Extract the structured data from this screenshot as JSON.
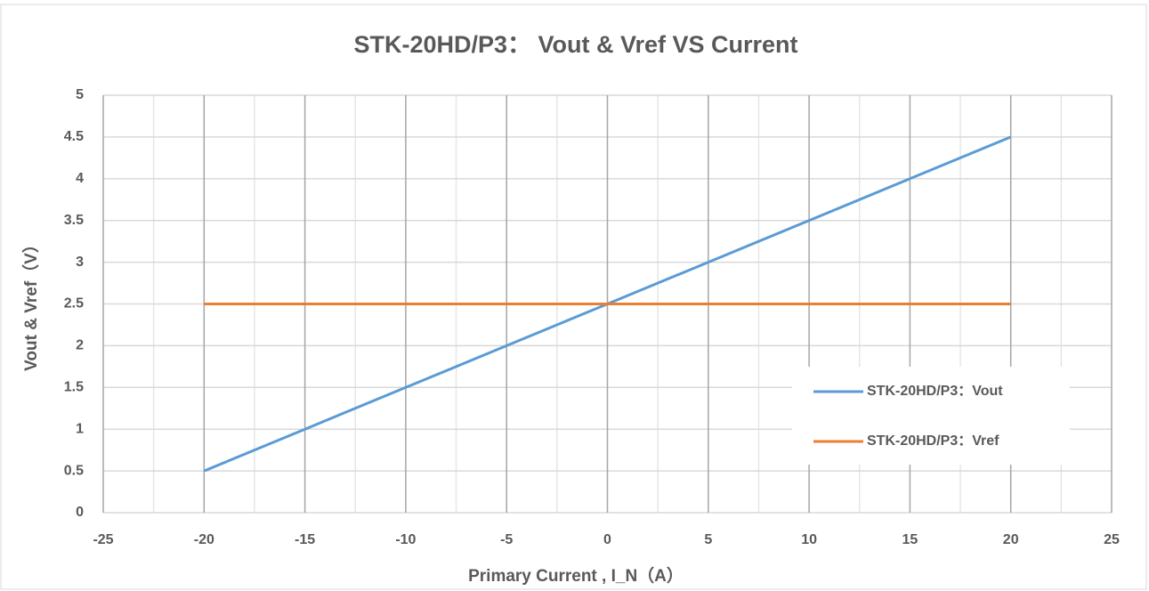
{
  "chart_data": {
    "type": "line",
    "title": "STK-20HD/P3： Vout & Vref VS Current",
    "x_label": "Primary Current , I_N（A）",
    "y_label": "Vout & Vref（V）",
    "x": [
      -20,
      -15,
      -10,
      -5,
      0,
      5,
      10,
      15,
      20
    ],
    "series": [
      {
        "name": "STK-20HD/P3：Vout",
        "color": "#5b9bd5",
        "values": [
          0.5,
          1,
          1.5,
          2,
          2.5,
          3,
          3.5,
          4,
          4.5
        ]
      },
      {
        "name": "STK-20HD/P3：Vref",
        "color": "#ed7d31",
        "values": [
          2.5,
          2.5,
          2.5,
          2.5,
          2.5,
          2.5,
          2.5,
          2.5,
          2.5
        ]
      }
    ],
    "xlim": [
      -25,
      25
    ],
    "xticks": [
      -25,
      -20,
      -15,
      -10,
      -5,
      0,
      5,
      10,
      15,
      20,
      25
    ],
    "ylim": [
      0,
      5
    ],
    "yticks": [
      0,
      0.5,
      1,
      1.5,
      2,
      2.5,
      3,
      3.5,
      4,
      4.5,
      5
    ],
    "grid": true,
    "minor_grid": true,
    "legend": "lower right"
  }
}
